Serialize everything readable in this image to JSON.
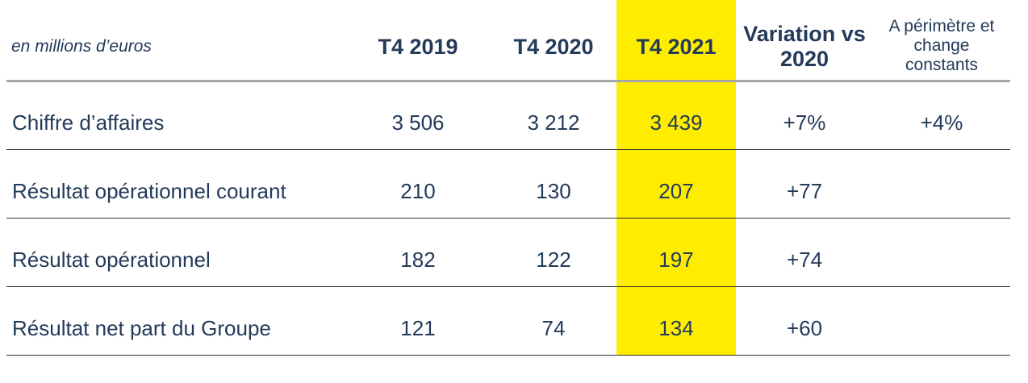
{
  "table": {
    "unit_label": "en millions d’euros",
    "columns": [
      "T4 2019",
      "T4 2020",
      "T4 2021",
      "Variation vs 2020",
      "A périmètre et change constants"
    ],
    "highlight_column": "T4 2021",
    "highlight_color": "#ffed00",
    "text_color": "#233a5a",
    "rows": [
      {
        "label": "Chiffre d’affaires",
        "values": [
          "3 506",
          "3 212",
          "3 439",
          "+7%",
          "+4%"
        ]
      },
      {
        "label": "Résultat opérationnel courant",
        "values": [
          "210",
          "130",
          "207",
          "+77",
          ""
        ]
      },
      {
        "label": "Résultat opérationnel",
        "values": [
          "182",
          "122",
          "197",
          "+74",
          ""
        ]
      },
      {
        "label": "Résultat net part du Groupe",
        "values": [
          "121",
          "74",
          "134",
          "+60",
          ""
        ]
      }
    ]
  },
  "chart_data": {
    "type": "table",
    "columns": [
      "T4 2019",
      "T4 2020",
      "T4 2021",
      "Variation vs 2020",
      "A périmètre et change constants"
    ],
    "rows": [
      {
        "label": "Chiffre d’affaires",
        "values": [
          "3 506",
          "3 212",
          "3 439",
          "+7%",
          "+4%"
        ]
      },
      {
        "label": "Résultat opérationnel courant",
        "values": [
          "210",
          "130",
          "207",
          "+77",
          ""
        ]
      },
      {
        "label": "Résultat opérationnel",
        "values": [
          "182",
          "122",
          "197",
          "+74",
          ""
        ]
      },
      {
        "label": "Résultat net part du Groupe",
        "values": [
          "121",
          "74",
          "134",
          "+60",
          ""
        ]
      }
    ]
  }
}
